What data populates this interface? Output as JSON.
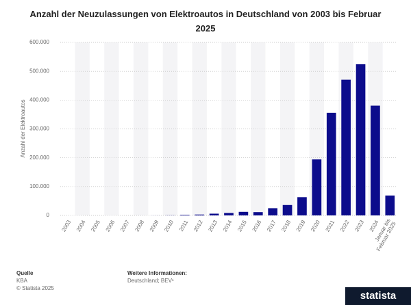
{
  "chart_data": {
    "type": "bar",
    "title": "Anzahl der Neuzulassungen von Elektroautos in Deutschland von 2003 bis Februar 2025",
    "y_label": "Anzahl der Elektroautos",
    "categories": [
      "2003",
      "2004",
      "2005",
      "2006",
      "2007",
      "2008",
      "2009",
      "2010",
      "2011",
      "2012",
      "2013",
      "2014",
      "2015",
      "2016",
      "2017",
      "2018",
      "2019",
      "2020",
      "2021",
      "2022",
      "2023",
      "2024",
      "Januar bis\nFebruar 2025"
    ],
    "values": [
      0,
      0,
      0,
      0,
      8,
      36,
      162,
      541,
      2154,
      2956,
      6051,
      8522,
      12363,
      11410,
      25056,
      36062,
      63281,
      194163,
      355961,
      470559,
      524219,
      380609,
      69000
    ],
    "color": "#0c0c8c",
    "ylim": [
      0,
      600000
    ],
    "yticks": [
      0,
      {
        "value": 100000,
        "label": "100.000"
      },
      {
        "value": 200000,
        "label": "200.000"
      },
      {
        "value": 300000,
        "label": "300.000"
      },
      {
        "value": 400000,
        "label": "400.000"
      },
      {
        "value": 500000,
        "label": "500.000"
      },
      {
        "value": 600000,
        "label": "600.000"
      }
    ],
    "grid": true
  },
  "footer": {
    "source_heading": "Quelle",
    "source": "KBA",
    "copyright": "© Statista 2025",
    "info_heading": "Weitere Informationen:",
    "info": "Deutschland; BEV¹",
    "logo": "statista"
  }
}
